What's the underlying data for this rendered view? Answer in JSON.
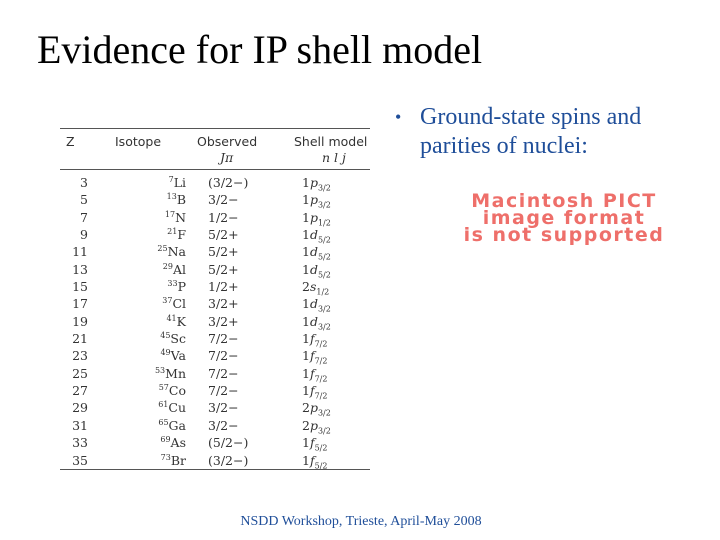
{
  "title": "Evidence for IP shell model",
  "bullet": {
    "line1": "Ground-state spins and",
    "line2": "parities of nuclei:"
  },
  "pict_placeholder": [
    "Macintosh PICT",
    "image format",
    "is not supported"
  ],
  "table": {
    "headers": {
      "z": "Z",
      "isotope": "Isotope",
      "observed": "Observed",
      "observed_sub": "Jπ",
      "shell": "Shell model",
      "shell_sub": "n l j"
    },
    "rows": [
      {
        "z": "3",
        "mass": "7",
        "el": "Li",
        "obs": "(3/2−)",
        "n": "1",
        "l": "p",
        "j": "3/2"
      },
      {
        "z": "5",
        "mass": "13",
        "el": "B",
        "obs": "3/2−",
        "n": "1",
        "l": "p",
        "j": "3/2"
      },
      {
        "z": "7",
        "mass": "17",
        "el": "N",
        "obs": "1/2−",
        "n": "1",
        "l": "p",
        "j": "1/2"
      },
      {
        "z": "9",
        "mass": "21",
        "el": "F",
        "obs": "5/2+",
        "n": "1",
        "l": "d",
        "j": "5/2"
      },
      {
        "z": "11",
        "mass": "25",
        "el": "Na",
        "obs": "5/2+",
        "n": "1",
        "l": "d",
        "j": "5/2"
      },
      {
        "z": "13",
        "mass": "29",
        "el": "Al",
        "obs": "5/2+",
        "n": "1",
        "l": "d",
        "j": "5/2"
      },
      {
        "z": "15",
        "mass": "33",
        "el": "P",
        "obs": "1/2+",
        "n": "2",
        "l": "s",
        "j": "1/2"
      },
      {
        "z": "17",
        "mass": "37",
        "el": "Cl",
        "obs": "3/2+",
        "n": "1",
        "l": "d",
        "j": "3/2"
      },
      {
        "z": "19",
        "mass": "41",
        "el": "K",
        "obs": "3/2+",
        "n": "1",
        "l": "d",
        "j": "3/2"
      },
      {
        "z": "21",
        "mass": "45",
        "el": "Sc",
        "obs": "7/2−",
        "n": "1",
        "l": "f",
        "j": "7/2"
      },
      {
        "z": "23",
        "mass": "49",
        "el": "Va",
        "obs": "7/2−",
        "n": "1",
        "l": "f",
        "j": "7/2"
      },
      {
        "z": "25",
        "mass": "53",
        "el": "Mn",
        "obs": "7/2−",
        "n": "1",
        "l": "f",
        "j": "7/2"
      },
      {
        "z": "27",
        "mass": "57",
        "el": "Co",
        "obs": "7/2−",
        "n": "1",
        "l": "f",
        "j": "7/2"
      },
      {
        "z": "29",
        "mass": "61",
        "el": "Cu",
        "obs": "3/2−",
        "n": "2",
        "l": "p",
        "j": "3/2"
      },
      {
        "z": "31",
        "mass": "65",
        "el": "Ga",
        "obs": "3/2−",
        "n": "2",
        "l": "p",
        "j": "3/2"
      },
      {
        "z": "33",
        "mass": "69",
        "el": "As",
        "obs": "(5/2−)",
        "n": "1",
        "l": "f",
        "j": "5/2"
      },
      {
        "z": "35",
        "mass": "73",
        "el": "Br",
        "obs": "(3/2−)",
        "n": "1",
        "l": "f",
        "j": "5/2"
      }
    ]
  },
  "footer": "NSDD Workshop, Trieste, April-May 2008",
  "colors": {
    "bullet_text": "#1f4e99",
    "footer_text": "#1f4e99",
    "pict_text": "#ee6f6a",
    "table_text": "#333333"
  }
}
